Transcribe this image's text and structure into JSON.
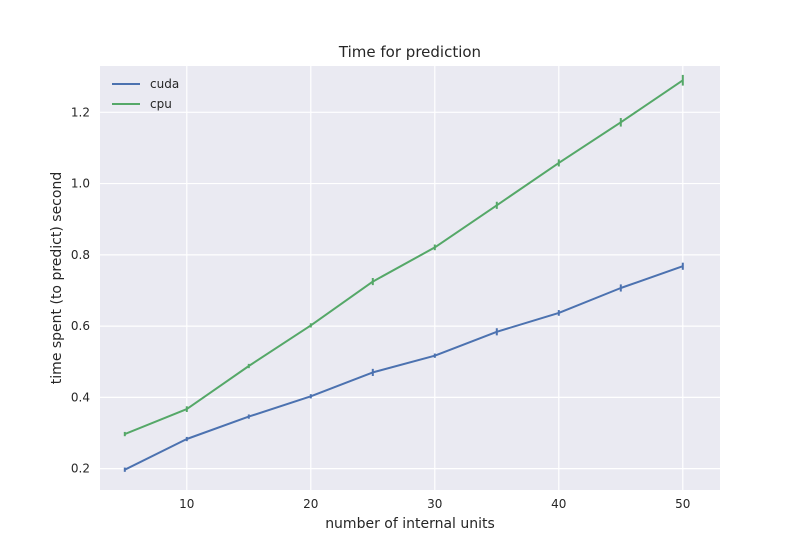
{
  "chart_data": {
    "type": "line",
    "title": "Time for prediction",
    "xlabel": "number of internal units",
    "ylabel": "time spent (to predict) second",
    "x": [
      5,
      10,
      15,
      20,
      25,
      30,
      35,
      40,
      45,
      50
    ],
    "xlim": [
      3,
      53
    ],
    "ylim": [
      0.14,
      1.33
    ],
    "xticks": [
      10,
      20,
      30,
      40,
      50
    ],
    "yticks": [
      0.2,
      0.4,
      0.6,
      0.8,
      1.0,
      1.2
    ],
    "xtick_labels": [
      "10",
      "20",
      "30",
      "40",
      "50"
    ],
    "ytick_labels": [
      "0.2",
      "0.4",
      "0.6",
      "0.8",
      "1.0",
      "1.2"
    ],
    "grid": true,
    "legend_position": "top-left",
    "background_color": "#eaeaf2",
    "grid_color": "#ffffff",
    "series": [
      {
        "name": "cuda",
        "color": "#4c72b0",
        "values": [
          0.197,
          0.283,
          0.346,
          0.403,
          0.47,
          0.517,
          0.584,
          0.637,
          0.707,
          0.768
        ],
        "errors": [
          0.003,
          0.004,
          0.005,
          0.004,
          0.01,
          0.005,
          0.01,
          0.008,
          0.01,
          0.01
        ]
      },
      {
        "name": "cpu",
        "color": "#55a868",
        "values": [
          0.297,
          0.367,
          0.488,
          0.602,
          0.725,
          0.821,
          0.939,
          1.058,
          1.172,
          1.29
        ],
        "errors": [
          0.004,
          0.008,
          0.005,
          0.005,
          0.01,
          0.008,
          0.01,
          0.01,
          0.012,
          0.015
        ]
      }
    ]
  }
}
